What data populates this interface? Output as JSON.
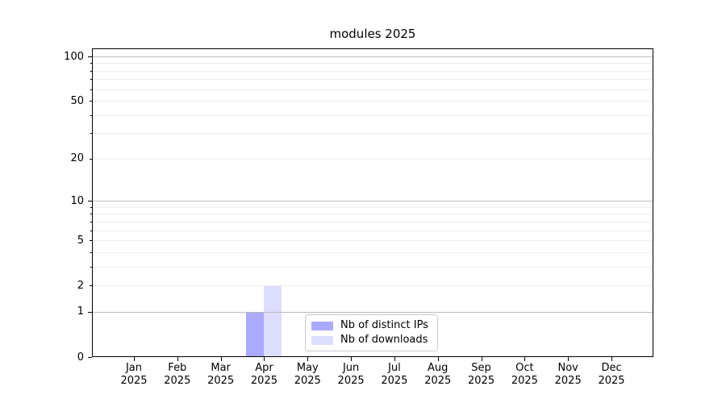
{
  "chart_data": {
    "type": "bar",
    "title": "modules 2025",
    "categories": [
      "Jan 2025",
      "Feb 2025",
      "Mar 2025",
      "Apr 2025",
      "May 2025",
      "Jun 2025",
      "Jul 2025",
      "Aug 2025",
      "Sep 2025",
      "Oct 2025",
      "Nov 2025",
      "Dec 2025"
    ],
    "series": [
      {
        "name": "Nb of distinct IPs",
        "color": "#aaaaff",
        "values": [
          0,
          0,
          0,
          1,
          0,
          0,
          0,
          0,
          0,
          0,
          0,
          0
        ]
      },
      {
        "name": "Nb of downloads",
        "color": "#ddddff",
        "values": [
          0,
          0,
          0,
          2,
          0,
          0,
          0,
          0,
          0,
          0,
          0,
          0
        ]
      }
    ],
    "xlabel": "",
    "ylabel": "",
    "yscale": "log1p",
    "ylim": [
      0,
      113
    ],
    "yticks": [
      0,
      1,
      2,
      5,
      10,
      20,
      50,
      100
    ],
    "major_gridlines": [
      1,
      10,
      100
    ],
    "minor_gridlines": [
      2,
      3,
      4,
      5,
      6,
      7,
      8,
      9,
      20,
      30,
      40,
      50,
      60,
      70,
      80,
      90
    ],
    "grid": "horizontal",
    "legend_position": "inside-lower-center"
  },
  "colors": {
    "background": "#ffffff",
    "spine": "#000000",
    "major_grid": "#bbbbbb",
    "minor_grid": "#ececec",
    "legend_border": "#cccccc",
    "text": "#000000"
  }
}
